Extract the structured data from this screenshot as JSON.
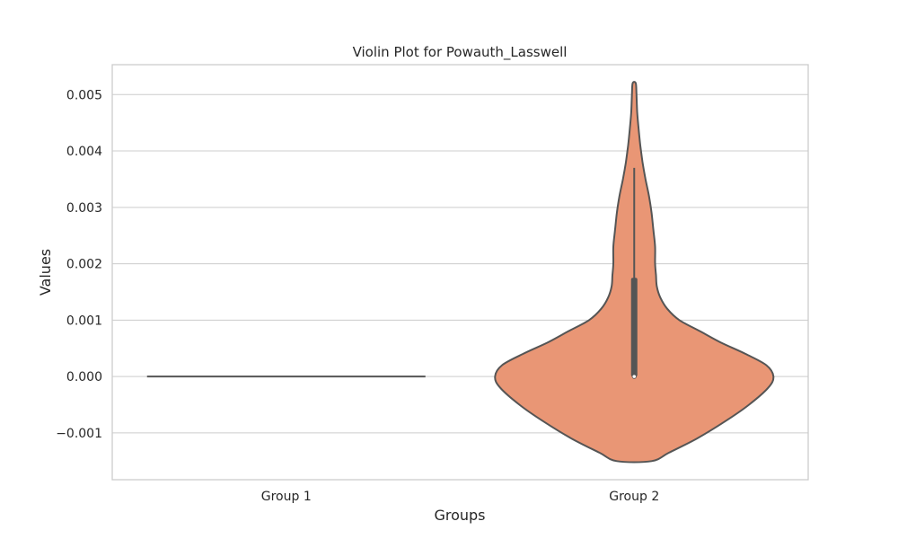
{
  "chart_data": {
    "type": "violin",
    "title": "Violin Plot for Powauth_Lasswell",
    "xlabel": "Groups",
    "ylabel": "Values",
    "categories": [
      "Group 1",
      "Group 2"
    ],
    "ylim": [
      -0.00183,
      0.00553
    ],
    "yticks": [
      -0.001,
      0.0,
      0.001,
      0.002,
      0.003,
      0.004,
      0.005
    ],
    "ytick_labels": [
      "−0.001",
      "0.000",
      "0.001",
      "0.002",
      "0.003",
      "0.004",
      "0.005"
    ],
    "grid": "horizontal",
    "colors": {
      "group2_fill": "#e99675",
      "outline": "#555555",
      "grid": "#cccccc"
    },
    "violins": [
      {
        "name": "Group 1",
        "density": [
          {
            "y": 0.0,
            "w": 0.8
          }
        ],
        "box": null
      },
      {
        "name": "Group 2",
        "density": [
          {
            "y": -0.0015,
            "w": 0.1
          },
          {
            "y": -0.00135,
            "w": 0.2
          },
          {
            "y": -0.0011,
            "w": 0.36
          },
          {
            "y": -0.0008,
            "w": 0.52
          },
          {
            "y": -0.0005,
            "w": 0.66
          },
          {
            "y": -0.0002,
            "w": 0.77
          },
          {
            "y": 0.0,
            "w": 0.8
          },
          {
            "y": 0.0002,
            "w": 0.76
          },
          {
            "y": 0.0004,
            "w": 0.64
          },
          {
            "y": 0.0006,
            "w": 0.5
          },
          {
            "y": 0.0008,
            "w": 0.38
          },
          {
            "y": 0.001,
            "w": 0.26
          },
          {
            "y": 0.0012,
            "w": 0.19
          },
          {
            "y": 0.0014,
            "w": 0.15
          },
          {
            "y": 0.0016,
            "w": 0.13
          },
          {
            "y": 0.0018,
            "w": 0.125
          },
          {
            "y": 0.002,
            "w": 0.12
          },
          {
            "y": 0.0023,
            "w": 0.12
          },
          {
            "y": 0.0026,
            "w": 0.11
          },
          {
            "y": 0.0029,
            "w": 0.1
          },
          {
            "y": 0.0032,
            "w": 0.085
          },
          {
            "y": 0.0035,
            "w": 0.065
          },
          {
            "y": 0.0038,
            "w": 0.048
          },
          {
            "y": 0.0041,
            "w": 0.035
          },
          {
            "y": 0.0044,
            "w": 0.025
          },
          {
            "y": 0.0047,
            "w": 0.017
          },
          {
            "y": 0.005,
            "w": 0.013
          },
          {
            "y": 0.0052,
            "w": 0.009
          }
        ],
        "box": {
          "whisker_low": 0.0,
          "q1": 0.0,
          "median": 0.0,
          "q3": 0.00175,
          "whisker_high": 0.0037
        }
      }
    ]
  }
}
